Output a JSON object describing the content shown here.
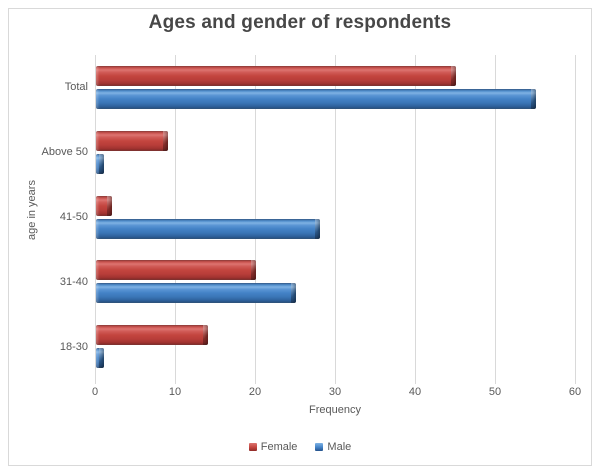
{
  "chart_data": {
    "type": "bar",
    "orientation": "horizontal",
    "title": "Ages and gender of respondents",
    "xlabel": "Frequency",
    "ylabel": "age in years",
    "categories": [
      "Total",
      "Above 50",
      "41-50",
      "31-40",
      "18-30"
    ],
    "series": [
      {
        "name": "Female",
        "color": "#c3453f",
        "values": [
          45,
          9,
          2,
          20,
          14
        ]
      },
      {
        "name": "Male",
        "color": "#4382c6",
        "values": [
          55,
          1,
          28,
          25,
          1
        ]
      }
    ],
    "xlim": [
      0,
      60
    ],
    "xticks": [
      0,
      10,
      20,
      30,
      40,
      50,
      60
    ],
    "grid": true,
    "legend_position": "bottom"
  },
  "colors": {
    "female": "#c3453f",
    "male": "#4382c6",
    "gridline": "#d9d9d9",
    "frame_border": "#d9d9d9",
    "axis_text": "#595959",
    "title_text": "#474747",
    "background": "#ffffff"
  }
}
